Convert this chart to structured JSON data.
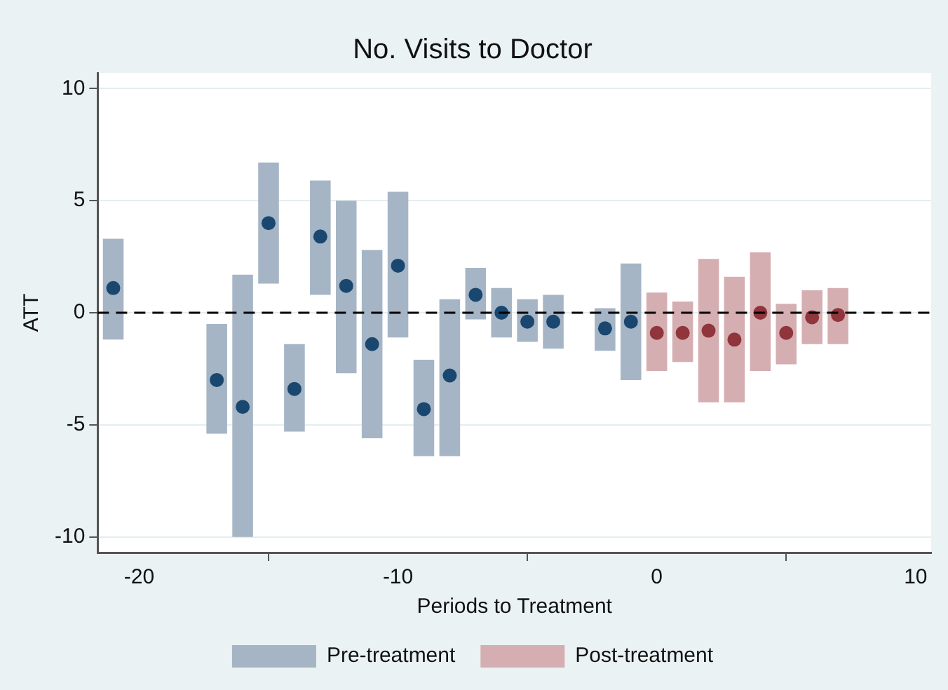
{
  "chart_data": {
    "type": "bar",
    "title": "No. Visits to Doctor",
    "xlabel": "Periods to Treatment",
    "ylabel": "ATT",
    "xlim": [
      -21.6,
      10.6
    ],
    "xticks": [
      -20,
      -10,
      0,
      10
    ],
    "ylim": [
      -10.7,
      10.7
    ],
    "yticks": [
      -10,
      -5,
      0,
      5,
      10
    ],
    "grid": "y",
    "legend": "bottom",
    "ref_lines": [
      {
        "axis": "y",
        "value": 0,
        "color": "#000000",
        "line_style": "dashed"
      }
    ],
    "series": [
      {
        "name": "Pre-treatment",
        "color": "#a5b5c5",
        "x": [
          -21,
          -17,
          -16,
          -15,
          -14,
          -13,
          -12,
          -11,
          -10,
          -9,
          -8,
          -7,
          -6,
          -5,
          -4,
          -2,
          -1
        ],
        "base": [
          -1.2,
          -5.4,
          -10.0,
          1.3,
          -5.3,
          0.8,
          -2.7,
          -5.6,
          -1.1,
          -6.4,
          -6.4,
          -0.3,
          -1.1,
          -1.3,
          -1.6,
          -1.7,
          -3.0
        ],
        "values": [
          4.5,
          4.9,
          11.7,
          5.4,
          3.9,
          5.1,
          7.7,
          8.4,
          6.5,
          4.3,
          7.0,
          2.3,
          2.2,
          1.9,
          2.4,
          1.9,
          5.2
        ]
      },
      {
        "name": "Post-treatment",
        "color": "#d5aeb2",
        "x": [
          0,
          1,
          2,
          3,
          4,
          5,
          6,
          7
        ],
        "base": [
          -2.6,
          -2.2,
          -4.0,
          -4.0,
          -2.6,
          -2.3,
          -1.4,
          -1.4
        ],
        "values": [
          3.5,
          2.7,
          6.4,
          5.6,
          5.3,
          2.7,
          2.4,
          2.5
        ]
      },
      {
        "type": "scatter",
        "marker": "circle",
        "color": "#1a476f",
        "x": [
          -21,
          -17,
          -16,
          -15,
          -14,
          -13,
          -12,
          -11,
          -10,
          -9,
          -8,
          -7,
          -6,
          -5,
          -4,
          -2,
          -1
        ],
        "values": [
          1.1,
          -3.0,
          -4.2,
          4.0,
          -3.4,
          3.4,
          1.2,
          -1.4,
          2.1,
          -4.3,
          -2.8,
          0.8,
          0.0,
          -0.4,
          -0.4,
          -0.7,
          -0.4
        ]
      },
      {
        "type": "scatter",
        "marker": "circle",
        "color": "#90353b",
        "x": [
          0,
          1,
          2,
          3,
          4,
          5,
          6,
          7
        ],
        "values": [
          -0.9,
          -0.9,
          -0.8,
          -1.2,
          0.0,
          -0.9,
          -0.2,
          -0.1
        ]
      }
    ]
  }
}
